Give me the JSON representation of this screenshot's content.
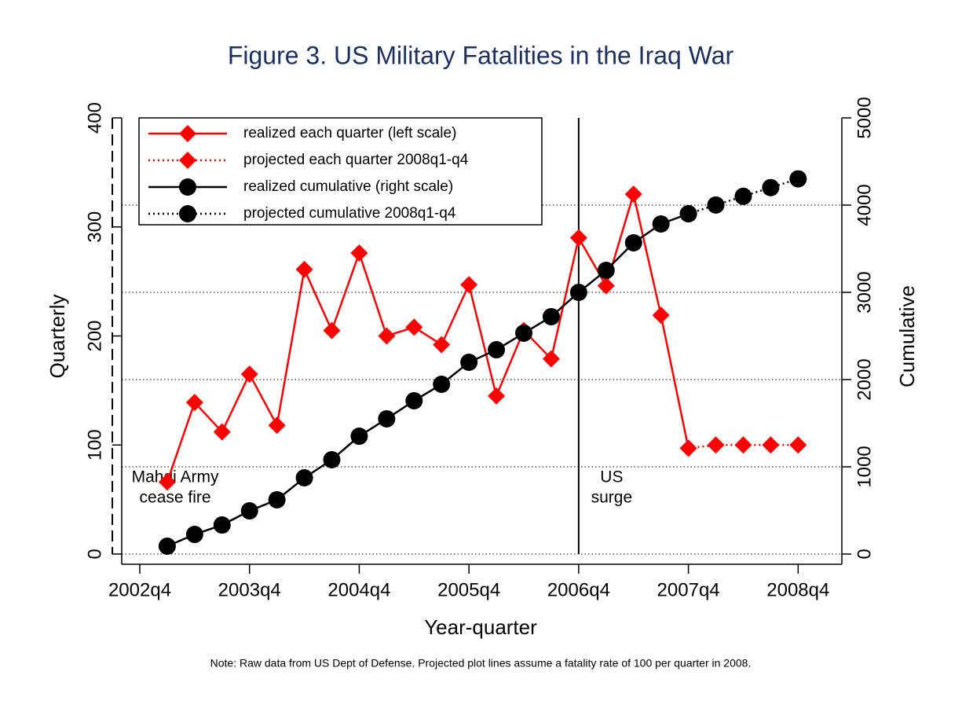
{
  "chart_data": {
    "type": "line",
    "title": "Figure 3.  US Military Fatalities in the Iraq War",
    "xlabel": "Year-quarter",
    "ylabel": "Quarterly",
    "y2label": "Cumulative",
    "note": "Note: Raw data from US Dept of Defense. Projected plot lines assume a fatality rate of 100 per quarter in 2008.",
    "categories": [
      "2002q4",
      null,
      null,
      null,
      "2003q4",
      null,
      null,
      null,
      "2004q4",
      null,
      null,
      null,
      "2005q4",
      null,
      null,
      null,
      "2006q4",
      null,
      null,
      null,
      "2007q4",
      null,
      null,
      null,
      "2008q4"
    ],
    "ylim": [
      0,
      400
    ],
    "yticks": [
      0,
      100,
      200,
      300,
      400
    ],
    "y2lim": [
      0,
      5000
    ],
    "y2ticks": [
      0,
      1000,
      2000,
      3000,
      4000,
      5000
    ],
    "grid": true,
    "legend": "top-left",
    "series": [
      {
        "name": "realized each quarter (left scale)",
        "color": "#ff0000",
        "marker": "diamond",
        "dash": "solid",
        "values": [
          null,
          66,
          139,
          112,
          165,
          118,
          261,
          205,
          276,
          200,
          208,
          192,
          247,
          145,
          205,
          179,
          290,
          246,
          330,
          219,
          97,
          null,
          null,
          null,
          null
        ]
      },
      {
        "name": "projected each quarter 2008q1-q4",
        "color": "#ff0000",
        "marker": "diamond",
        "dash": "dotted",
        "values": [
          null,
          null,
          null,
          null,
          null,
          null,
          null,
          null,
          null,
          null,
          null,
          null,
          null,
          null,
          null,
          null,
          null,
          null,
          null,
          null,
          97,
          100,
          100,
          100,
          100
        ]
      },
      {
        "name": "realized cumulative (right scale)",
        "color": "#000000",
        "marker": "circle",
        "dash": "solid",
        "axis": "y2",
        "values": [
          null,
          90,
          225,
          333,
          495,
          622,
          874,
          1081,
          1351,
          1550,
          1757,
          1946,
          2198,
          2342,
          2532,
          2721,
          3000,
          3252,
          3568,
          3784,
          3901,
          null,
          null,
          null,
          null
        ]
      },
      {
        "name": "projected cumulative 2008q1-q4",
        "color": "#000000",
        "marker": "circle",
        "dash": "dotted",
        "axis": "y2",
        "values": [
          null,
          null,
          null,
          null,
          null,
          null,
          null,
          null,
          null,
          null,
          null,
          null,
          null,
          null,
          null,
          null,
          null,
          null,
          null,
          null,
          3901,
          4001,
          4101,
          4201,
          4301
        ]
      }
    ],
    "vlines": [
      {
        "x": "2006q4",
        "style": "solid",
        "label": [
          "US",
          "surge"
        ]
      },
      {
        "x": "2007q2",
        "style": "dashed",
        "label": [
          "Mahdi Army",
          "cease fire"
        ]
      }
    ]
  }
}
